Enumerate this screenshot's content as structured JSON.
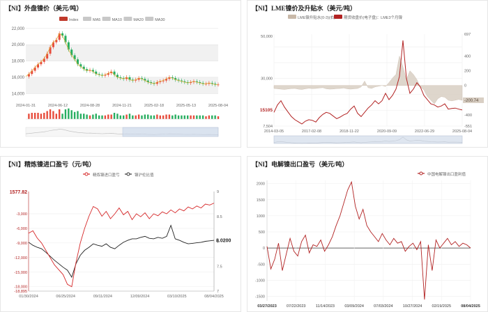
{
  "charts": [
    {
      "id": "ni_outer",
      "title": "【NI】外盘镍价（美元/吨）",
      "chart_data": {
        "type": "line",
        "title": "【NI】外盘镍价（美元/吨）",
        "legend": [
          "Index",
          "MA5",
          "MA10",
          "MA20",
          "MA30"
        ],
        "legend_colors": [
          "#c0392b",
          "#c8c8c8",
          "#c8c8c8",
          "#c8c8c8",
          "#c8c8c8"
        ],
        "x_ticks": [
          "2024-01-31",
          "2024-06-12",
          "2024-08-28",
          "2024-11-21",
          "2025-02-18",
          "2025-05-13",
          "2025-08-04"
        ],
        "y_ticks": [
          14000,
          16000,
          18000,
          20000,
          22000
        ],
        "ylim": [
          13000,
          22500
        ],
        "series": [
          {
            "values": [
              16100,
              16400,
              16800,
              17200,
              17600,
              17900,
              18300,
              18900,
              19700,
              20300,
              20600,
              21400,
              21100,
              20300,
              19400,
              18700,
              18200,
              17600,
              17300,
              17000,
              16800,
              16900,
              16700,
              16400,
              16300,
              16200,
              16300,
              16500,
              16700,
              16300,
              16000,
              15900,
              15800,
              16000,
              15700,
              15600,
              15700,
              15900,
              15800,
              15600,
              15400,
              15300,
              15200,
              15400,
              15500,
              15600,
              15800,
              16000,
              15900,
              15700,
              15600,
              15500,
              15400,
              15300,
              15400,
              15500,
              15400,
              15300,
              15200,
              15200,
              15300,
              15200,
              15100,
              15105
            ]
          }
        ]
      }
    },
    {
      "id": "lme",
      "title": "【NI】LME镍价及升贴水（美元/吨）",
      "chart_data": {
        "type": "line",
        "title": "【NI】LME镍价及升贴水（美元/吨）",
        "legend": [
          "LME镍升贴水(0-3)(右)",
          "期货收盘价(电子盘)：LME3个月镍"
        ],
        "legend_colors": [
          "#c8b8a8",
          "#b22222"
        ],
        "x_ticks": [
          "2014-03-05",
          "2017-02-08",
          "2018-11-22",
          "2020-09-09",
          "2022-06-29",
          "2025-08-04"
        ],
        "y_left_ticks": [
          7504,
          30000,
          50000
        ],
        "y_left_labels": [
          "7,504",
          "30,000",
          "50,000"
        ],
        "y_right_labels": [
          "697",
          "400",
          "200",
          "0",
          "-200",
          "-400",
          "-551"
        ],
        "ylim_left": [
          7504,
          51000
        ],
        "ylim_right": [
          -551,
          697
        ],
        "last_value_left": "15105",
        "last_value_right": "-200.74",
        "series": [
          {
            "name": "期货收盘价(电子盘)：LME3个月镍",
            "values": [
              14000,
              17500,
              19500,
              16500,
              14200,
              12000,
              10500,
              9500,
              8500,
              9800,
              10500,
              10200,
              9400,
              11500,
              13000,
              14000,
              13500,
              12200,
              11000,
              11800,
              12800,
              13500,
              15500,
              17000,
              13500,
              12000,
              14000,
              16000,
              17500,
              19500,
              18000,
              19500,
              23000,
              20000,
              22000,
              25000,
              31000,
              48000,
              30000,
              23000,
              25000,
              28000,
              26000,
              22000,
              20000,
              18000,
              17500,
              16500,
              17000,
              18000,
              15500,
              15800,
              16000,
              15500,
              15105
            ]
          },
          {
            "name": "LME镍升贴水(0-3)(右)",
            "values": [
              -40,
              -45,
              -50,
              -55,
              -48,
              -42,
              -40,
              -50,
              -55,
              -45,
              -38,
              -42,
              -40,
              -35,
              -30,
              -45,
              -50,
              -48,
              -42,
              -40,
              -35,
              -45,
              -50,
              -45,
              -40,
              -20,
              60,
              -30,
              -40,
              -20,
              -10,
              0,
              -15,
              40,
              100,
              150,
              400,
              250,
              80,
              200,
              150,
              80,
              -20,
              -60,
              -150,
              -200,
              -250,
              -180,
              -150,
              -160,
              -200,
              -210,
              -200,
              -190,
              -200.74
            ]
          }
        ]
      }
    },
    {
      "id": "refined_import",
      "title": "【NI】精炼镍进口盈亏（元/吨）",
      "chart_data": {
        "type": "line",
        "title": "【NI】精炼镍进口盈亏（元/吨）",
        "legend": [
          "精炼镍进口盈亏",
          "镍沪伦比值"
        ],
        "legend_colors": [
          "#d62728",
          "#333333"
        ],
        "x_ticks": [
          "01/30/2024",
          "06/25/2024",
          "09/11/2024",
          "12/09/2024",
          "03/10/2025",
          "08/04/2025"
        ],
        "y_left_ticks": [
          -3000,
          -6000,
          -9000,
          -12000,
          -15000,
          -18000
        ],
        "y_left_labels": [
          "-3,000",
          "-6,000",
          "-9,000",
          "-12,000",
          "-15,000",
          "-18,000"
        ],
        "y_left_extremes": [
          "1577.82",
          "-18,895"
        ],
        "y_right_labels": [
          "9",
          "8.5",
          "8",
          "7.5",
          "7"
        ],
        "ylim_left": [
          -18895,
          1577.82
        ],
        "ylim_right": [
          7,
          9
        ],
        "last_value_right": "8.0200",
        "series": [
          {
            "name": "精炼镍进口盈亏",
            "values": [
              -7000,
              -6500,
              -8000,
              -9000,
              -10500,
              -12000,
              -13500,
              -14500,
              -15500,
              -17500,
              -18000,
              -13000,
              -9000,
              -6000,
              -3500,
              -1500,
              -2000,
              -3500,
              -2500,
              -4000,
              -3000,
              -1800,
              -3200,
              -2500,
              -4200,
              -3000,
              -3600,
              -2800,
              -4000,
              -3000,
              -3400,
              -2600,
              -3000,
              -2200,
              -2800,
              -2000,
              -2400,
              -1600,
              -2000,
              -1400,
              -1800,
              -1000,
              -1200,
              -800
            ]
          },
          {
            "name": "镍沪伦比值",
            "values": [
              7.98,
              7.92,
              7.88,
              7.85,
              7.78,
              7.7,
              7.62,
              7.55,
              7.48,
              7.42,
              7.28,
              7.55,
              7.72,
              7.82,
              7.88,
              7.95,
              7.92,
              7.9,
              7.95,
              7.88,
              7.85,
              7.92,
              7.98,
              8.02,
              8.05,
              8.05,
              8.08,
              8.1,
              8.06,
              8.05,
              8.08,
              8.06,
              8.1,
              8.32,
              8.05,
              8.02,
              7.98,
              7.95,
              7.96,
              7.97,
              7.98,
              8.0,
              8.01,
              8.02
            ]
          }
        ]
      }
    },
    {
      "id": "electrolytic_export",
      "title": "【NI】电解镍出口盈亏（美元/吨）",
      "chart_data": {
        "type": "line",
        "title": "【NI】电解镍出口盈亏（美元/吨）",
        "legend": [
          "中国电解镍出口盈利值"
        ],
        "legend_colors": [
          "#b22222"
        ],
        "x_ticks": [
          "03/27/2023",
          "07/22/2023",
          "11/14/2023",
          "03/09/2024",
          "07/03/2024",
          "10/27/2024",
          "02/19/2025",
          "08/04/2025"
        ],
        "y_ticks": [
          2000,
          1500,
          1000,
          500,
          0,
          -500,
          -1000,
          -1500
        ],
        "y_labels": [
          "2000",
          "1500",
          "1000",
          "500",
          "0",
          "-500",
          "-1000",
          "-1500"
        ],
        "ylim": [
          -1640,
          2100
        ],
        "series": [
          {
            "name": "中国电解镍出口盈利值",
            "values": [
              50,
              -650,
              -350,
              150,
              -700,
              -200,
              300,
              -100,
              -250,
              200,
              400,
              -150,
              100,
              50,
              250,
              -100,
              100,
              350,
              700,
              1000,
              1400,
              1800,
              2050,
              1300,
              900,
              1200,
              700,
              500,
              350,
              200,
              450,
              250,
              100,
              300,
              150,
              200,
              -100,
              50,
              150,
              -50,
              200,
              -1600,
              100,
              -700,
              250,
              0,
              150,
              300,
              100,
              200,
              50,
              150,
              100,
              0
            ]
          }
        ]
      }
    }
  ]
}
